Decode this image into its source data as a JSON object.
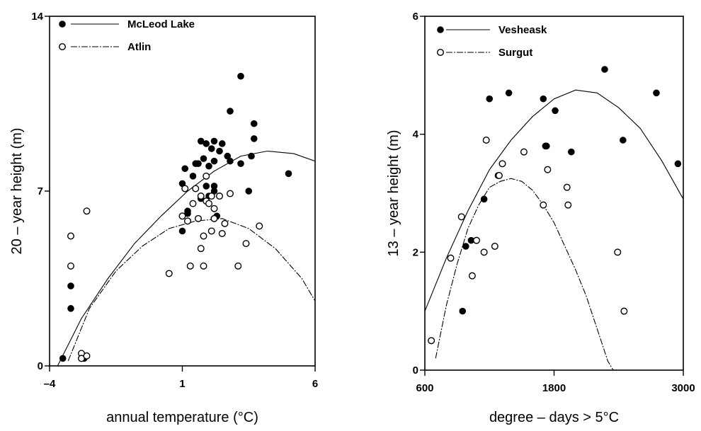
{
  "chart_data": [
    {
      "type": "scatter",
      "xlabel": "annual temperature (°C)",
      "ylabel": "20 – year height (m)",
      "xlim": [
        -4,
        6
      ],
      "ylim": [
        0,
        14
      ],
      "xticks": [
        "–4",
        "1",
        "6"
      ],
      "yticks": [
        "0",
        "7",
        "14"
      ],
      "legend_position": "top-left",
      "series": [
        {
          "name": "McLeod Lake",
          "marker": "filled",
          "line": "solid",
          "points": [
            [
              -3.5,
              0.3
            ],
            [
              -3.2,
              2.3
            ],
            [
              -3.2,
              3.2
            ],
            [
              -2.8,
              0.3
            ],
            [
              -2.7,
              0.3
            ],
            [
              1.0,
              5.4
            ],
            [
              1.0,
              7.3
            ],
            [
              1.1,
              7.9
            ],
            [
              1.2,
              6.1
            ],
            [
              1.2,
              6.2
            ],
            [
              1.4,
              7.6
            ],
            [
              1.5,
              8.1
            ],
            [
              1.6,
              8.1
            ],
            [
              1.7,
              9.0
            ],
            [
              1.7,
              6.7
            ],
            [
              1.8,
              8.3
            ],
            [
              1.9,
              8.9
            ],
            [
              1.9,
              7.2
            ],
            [
              2.0,
              6.8
            ],
            [
              2.0,
              8.0
            ],
            [
              2.1,
              8.7
            ],
            [
              2.2,
              8.2
            ],
            [
              2.2,
              9.0
            ],
            [
              2.2,
              7.2
            ],
            [
              2.2,
              7.0
            ],
            [
              2.3,
              6.0
            ],
            [
              2.4,
              8.6
            ],
            [
              2.5,
              8.9
            ],
            [
              2.7,
              8.4
            ],
            [
              2.8,
              8.2
            ],
            [
              2.8,
              10.2
            ],
            [
              3.2,
              11.6
            ],
            [
              3.2,
              8.1
            ],
            [
              3.5,
              7.0
            ],
            [
              3.7,
              9.1
            ],
            [
              3.7,
              9.7
            ],
            [
              3.6,
              8.4
            ],
            [
              5.0,
              7.7
            ]
          ],
          "curve": [
            [
              -3.7,
              0.0
            ],
            [
              -2.8,
              1.9
            ],
            [
              -1.8,
              3.5
            ],
            [
              -0.8,
              4.9
            ],
            [
              0.2,
              6.0
            ],
            [
              1.2,
              7.0
            ],
            [
              2.2,
              7.8
            ],
            [
              3.2,
              8.4
            ],
            [
              4.2,
              8.6
            ],
            [
              5.2,
              8.5
            ],
            [
              6.0,
              8.2
            ]
          ]
        },
        {
          "name": "Atlin",
          "marker": "open",
          "line": "dashed",
          "points": [
            [
              -2.6,
              6.2
            ],
            [
              -3.2,
              5.2
            ],
            [
              -3.2,
              4.0
            ],
            [
              -2.8,
              0.5
            ],
            [
              -2.8,
              0.3
            ],
            [
              -2.6,
              0.4
            ],
            [
              0.5,
              3.7
            ],
            [
              1.0,
              6.0
            ],
            [
              1.1,
              7.1
            ],
            [
              1.2,
              5.8
            ],
            [
              1.3,
              4.0
            ],
            [
              1.4,
              6.5
            ],
            [
              1.5,
              7.1
            ],
            [
              1.6,
              5.9
            ],
            [
              1.7,
              4.7
            ],
            [
              1.7,
              6.8
            ],
            [
              1.8,
              4.0
            ],
            [
              1.8,
              5.2
            ],
            [
              1.9,
              6.6
            ],
            [
              1.9,
              7.6
            ],
            [
              2.0,
              6.5
            ],
            [
              2.1,
              5.4
            ],
            [
              2.1,
              6.8
            ],
            [
              2.2,
              5.9
            ],
            [
              2.2,
              6.3
            ],
            [
              2.5,
              5.3
            ],
            [
              2.6,
              5.7
            ],
            [
              2.8,
              6.9
            ],
            [
              3.1,
              4.0
            ],
            [
              3.4,
              4.9
            ],
            [
              3.9,
              5.6
            ],
            [
              2.4,
              6.8
            ]
          ],
          "curve": [
            [
              -3.3,
              0.2
            ],
            [
              -2.5,
              2.3
            ],
            [
              -1.5,
              3.8
            ],
            [
              -0.5,
              4.8
            ],
            [
              0.5,
              5.5
            ],
            [
              1.5,
              5.8
            ],
            [
              2.5,
              5.9
            ],
            [
              3.5,
              5.5
            ],
            [
              4.5,
              4.7
            ],
            [
              5.5,
              3.5
            ],
            [
              6.0,
              2.6
            ]
          ]
        }
      ]
    },
    {
      "type": "scatter",
      "xlabel": "degree – days > 5°C",
      "ylabel": "13 – year height (m)",
      "xlim": [
        600,
        3000
      ],
      "ylim": [
        0,
        6
      ],
      "xticks": [
        "600",
        "1800",
        "3000"
      ],
      "yticks": [
        "0",
        "2",
        "4",
        "6"
      ],
      "legend_position": "top-left",
      "series": [
        {
          "name": "Vesheask",
          "marker": "filled",
          "line": "solid",
          "points": [
            [
              950,
              1.0
            ],
            [
              980,
              2.1
            ],
            [
              1030,
              2.2
            ],
            [
              1150,
              2.9
            ],
            [
              1200,
              4.6
            ],
            [
              1280,
              3.3
            ],
            [
              1380,
              4.7
            ],
            [
              1700,
              4.6
            ],
            [
              1720,
              3.8
            ],
            [
              1730,
              3.8
            ],
            [
              1810,
              4.4
            ],
            [
              1960,
              3.7
            ],
            [
              2270,
              5.1
            ],
            [
              2440,
              3.9
            ],
            [
              2750,
              4.7
            ],
            [
              2950,
              3.5
            ]
          ],
          "curve": [
            [
              600,
              1.0
            ],
            [
              800,
              1.9
            ],
            [
              1000,
              2.7
            ],
            [
              1200,
              3.4
            ],
            [
              1400,
              3.9
            ],
            [
              1600,
              4.3
            ],
            [
              1800,
              4.6
            ],
            [
              2000,
              4.75
            ],
            [
              2200,
              4.7
            ],
            [
              2400,
              4.45
            ],
            [
              2600,
              4.1
            ],
            [
              2800,
              3.55
            ],
            [
              3000,
              2.9
            ]
          ]
        },
        {
          "name": "Surgut",
          "marker": "open",
          "line": "dashed",
          "points": [
            [
              660,
              0.5
            ],
            [
              840,
              1.9
            ],
            [
              940,
              2.6
            ],
            [
              1040,
              1.6
            ],
            [
              1080,
              2.2
            ],
            [
              1150,
              2.0
            ],
            [
              1170,
              3.9
            ],
            [
              1250,
              2.1
            ],
            [
              1290,
              3.3
            ],
            [
              1320,
              3.5
            ],
            [
              1520,
              3.7
            ],
            [
              1700,
              2.8
            ],
            [
              1740,
              3.4
            ],
            [
              1920,
              3.1
            ],
            [
              1930,
              2.8
            ],
            [
              2390,
              2.0
            ],
            [
              2450,
              1.0
            ]
          ],
          "curve": [
            [
              700,
              0.2
            ],
            [
              800,
              1.1
            ],
            [
              900,
              1.8
            ],
            [
              1000,
              2.4
            ],
            [
              1100,
              2.8
            ],
            [
              1200,
              3.1
            ],
            [
              1300,
              3.2
            ],
            [
              1400,
              3.25
            ],
            [
              1500,
              3.2
            ],
            [
              1600,
              3.05
            ],
            [
              1700,
              2.8
            ],
            [
              1800,
              2.5
            ],
            [
              1900,
              2.1
            ],
            [
              2000,
              1.7
            ],
            [
              2100,
              1.25
            ],
            [
              2200,
              0.7
            ],
            [
              2300,
              0.15
            ],
            [
              2350,
              0.0
            ]
          ]
        }
      ]
    }
  ]
}
